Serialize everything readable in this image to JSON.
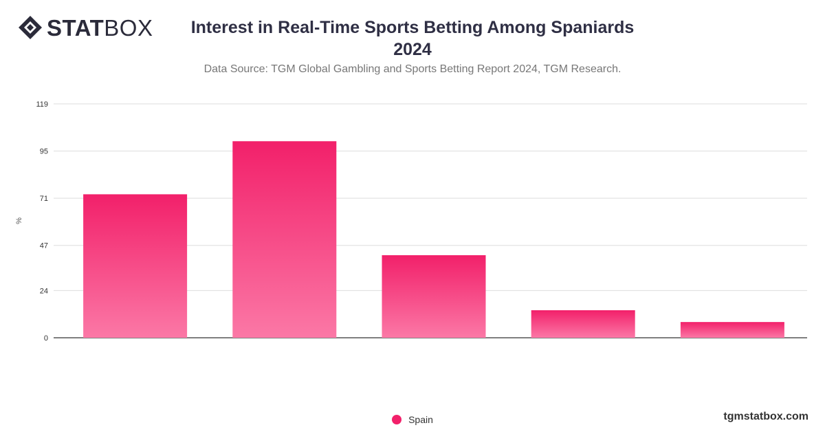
{
  "brand": {
    "part1": "STAT",
    "part2": "BOX"
  },
  "header": {
    "title_line1": "Interest in Real-Time Sports Betting Among Spaniards",
    "title_line2": "2024",
    "subtitle": "Data Source: TGM Global Gambling and Sports Betting Report 2024, TGM Research."
  },
  "footer": {
    "site": "tgmstatbox.com"
  },
  "colors": {
    "bar_top": "#f2206a",
    "bar_bottom": "#fb78a6",
    "grid": "#dddddd",
    "axis": "#333333"
  },
  "chart_data": {
    "type": "bar",
    "categories": [
      "",
      "",
      "",
      "",
      ""
    ],
    "series": [
      {
        "name": "Spain",
        "values": [
          73,
          100,
          42,
          14,
          8
        ]
      }
    ],
    "ylabel": "%",
    "yticks": [
      0,
      24,
      47,
      71,
      95,
      119
    ],
    "ylim": [
      0,
      119
    ],
    "grid": true,
    "legend": "bottom-center"
  }
}
